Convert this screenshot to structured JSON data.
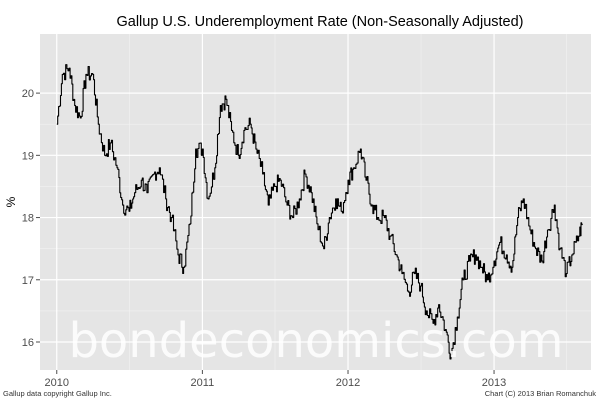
{
  "chart_data": {
    "type": "line",
    "title": "Gallup U.S. Underemployment Rate (Non-Seasonally Adjusted)",
    "ylabel": "%",
    "xlabel": "",
    "xlim": [
      "2009-11-20",
      "2013-09-01"
    ],
    "ylim": [
      15.55,
      20.95
    ],
    "x_ticks": [
      {
        "label": "2010",
        "value": "2010-01-01"
      },
      {
        "label": "2011",
        "value": "2011-01-01"
      },
      {
        "label": "2012",
        "value": "2012-01-01"
      },
      {
        "label": "2013",
        "value": "2013-01-01"
      }
    ],
    "y_ticks": [
      {
        "label": "16",
        "value": 16
      },
      {
        "label": "17",
        "value": 17
      },
      {
        "label": "18",
        "value": 18
      },
      {
        "label": "19",
        "value": 19
      },
      {
        "label": "20",
        "value": 20
      }
    ],
    "grid": true,
    "series": [
      {
        "x": [
          "2010-01-01",
          "2010-01-15",
          "2010-02-01",
          "2010-02-15",
          "2010-03-01",
          "2010-03-15",
          "2010-04-01",
          "2010-04-15",
          "2010-05-01",
          "2010-05-15",
          "2010-06-01",
          "2010-06-15",
          "2010-07-01",
          "2010-07-15",
          "2010-08-01",
          "2010-08-15",
          "2010-09-01",
          "2010-09-15",
          "2010-10-01",
          "2010-10-15",
          "2010-11-01",
          "2010-11-15",
          "2010-12-01",
          "2010-12-15",
          "2011-01-01",
          "2011-01-15",
          "2011-02-01",
          "2011-02-15",
          "2011-03-01",
          "2011-03-15",
          "2011-04-01",
          "2011-04-15",
          "2011-05-01",
          "2011-05-15",
          "2011-06-01",
          "2011-06-15",
          "2011-07-01",
          "2011-07-15",
          "2011-08-01",
          "2011-08-15",
          "2011-09-01",
          "2011-09-15",
          "2011-10-01",
          "2011-10-15",
          "2011-11-01",
          "2011-11-15",
          "2011-12-01",
          "2011-12-15",
          "2012-01-01",
          "2012-01-15",
          "2012-02-01",
          "2012-02-15",
          "2012-03-01",
          "2012-03-15",
          "2012-04-01",
          "2012-04-15",
          "2012-05-01",
          "2012-05-15",
          "2012-06-01",
          "2012-06-15",
          "2012-07-01",
          "2012-07-15",
          "2012-08-01",
          "2012-08-15",
          "2012-09-01",
          "2012-09-15",
          "2012-10-01",
          "2012-10-15",
          "2012-11-01",
          "2012-11-15",
          "2012-12-01",
          "2012-12-15",
          "2013-01-01",
          "2013-01-15",
          "2013-02-01",
          "2013-02-15",
          "2013-03-01",
          "2013-03-15",
          "2013-04-01",
          "2013-04-15",
          "2013-05-01",
          "2013-05-15",
          "2013-06-01",
          "2013-06-15",
          "2013-07-01",
          "2013-07-15",
          "2013-08-01",
          "2013-08-10"
        ],
        "values": [
          19.5,
          20.3,
          20.4,
          19.8,
          19.6,
          20.3,
          20.3,
          19.5,
          19.0,
          19.2,
          18.8,
          18.2,
          18.1,
          18.4,
          18.6,
          18.4,
          18.7,
          18.8,
          18.3,
          18.0,
          17.4,
          17.2,
          17.9,
          19.1,
          19.1,
          18.3,
          18.8,
          19.8,
          19.9,
          19.4,
          19.0,
          19.4,
          19.5,
          19.1,
          18.7,
          18.2,
          18.5,
          18.6,
          18.2,
          18.0,
          18.3,
          18.7,
          18.4,
          17.9,
          17.5,
          18.0,
          18.3,
          18.1,
          18.6,
          18.8,
          19.1,
          18.6,
          18.2,
          18.0,
          18.0,
          17.7,
          17.4,
          17.1,
          16.8,
          17.1,
          16.9,
          16.5,
          16.3,
          16.6,
          16.2,
          15.8,
          16.4,
          17.0,
          17.3,
          17.4,
          17.2,
          17.0,
          17.3,
          17.6,
          17.4,
          17.2,
          18.0,
          18.3,
          17.8,
          17.5,
          17.3,
          17.8,
          18.2,
          17.5,
          17.1,
          17.4,
          17.7,
          17.9
        ]
      }
    ]
  },
  "watermark": "bondeconomics.com",
  "footer": {
    "left": "Gallup data copyright Gallup Inc.",
    "right": "Chart (C) 2013 Brian Romanchuk"
  }
}
